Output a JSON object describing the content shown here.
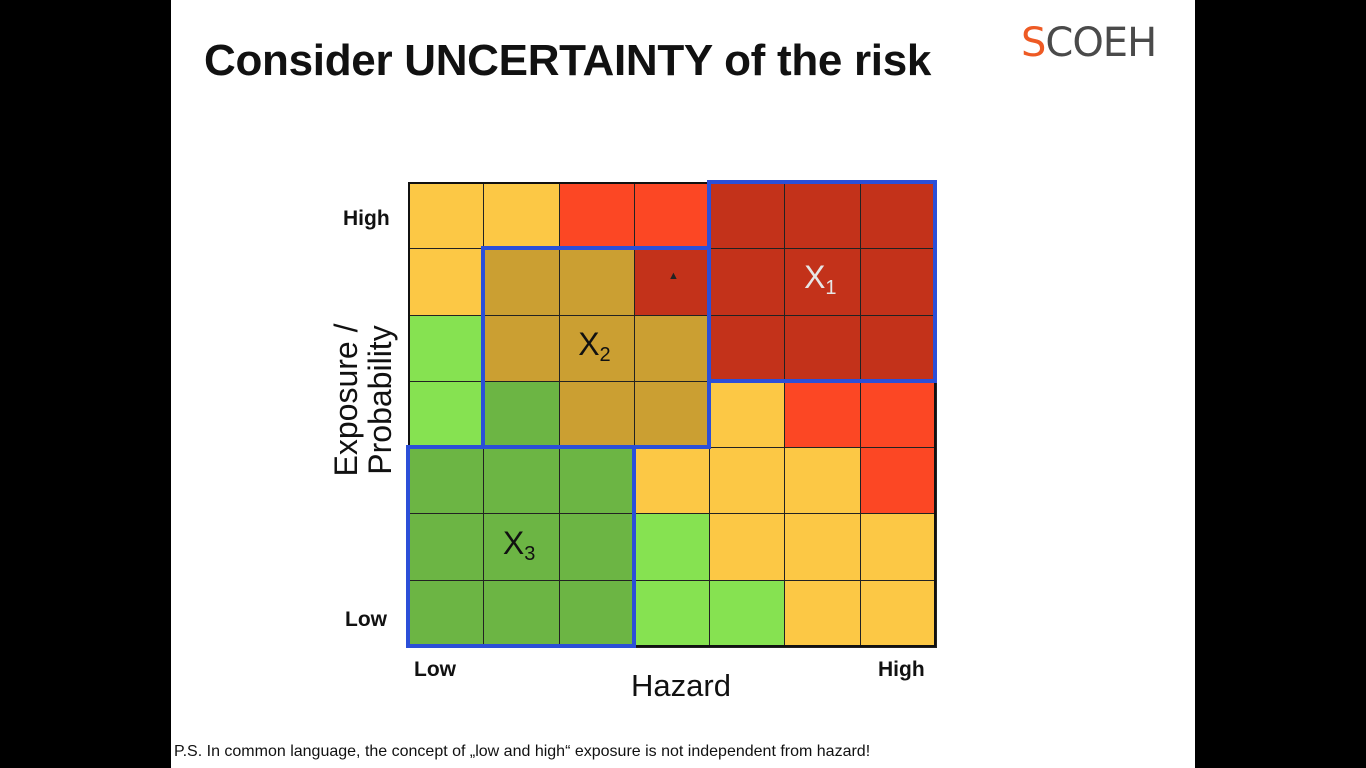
{
  "slide": {
    "title": "Consider UNCERTAINTY of the risk",
    "logo": {
      "initial": "S",
      "rest": "COEH"
    },
    "footnote": "P.S. In common language, the concept of „low and high“ exposure is not independent from hazard!"
  },
  "matrix": {
    "x_axis_label": "Hazard",
    "y_axis_label": [
      "Exposure /",
      "Probability"
    ],
    "x_low": "Low",
    "x_high": "High",
    "y_low": "Low",
    "y_high": "High",
    "columns": 7,
    "rows": 7,
    "colors": {
      "Y": "#fcc845",
      "R": "#fc4724",
      "DR": "#c3321a",
      "G": "#86e251",
      "DG": "#6cb544",
      "O": "#cb9f32",
      "M": "#e6b83c"
    },
    "cells": [
      [
        "Y",
        "Y",
        "R",
        "R",
        "DR",
        "DR",
        "DR"
      ],
      [
        "Y",
        "O",
        "O",
        "DR",
        "DR",
        "DR",
        "DR"
      ],
      [
        "G",
        "O",
        "O",
        "O",
        "DR",
        "DR",
        "DR"
      ],
      [
        "G",
        "DG",
        "O",
        "O",
        "Y",
        "R",
        "R"
      ],
      [
        "DG",
        "DG",
        "DG",
        "Y",
        "Y",
        "Y",
        "R"
      ],
      [
        "DG",
        "DG",
        "DG",
        "G",
        "Y",
        "Y",
        "Y"
      ],
      [
        "DG",
        "DG",
        "DG",
        "G",
        "G",
        "Y",
        "Y"
      ]
    ],
    "uncertainty_boxes": [
      {
        "label": "X",
        "sub": "1",
        "text_color": "#e6e6e6",
        "col": 4,
        "row": 0,
        "cols": 3,
        "rows": 3
      },
      {
        "label": "X",
        "sub": "2",
        "text_color": "#111111",
        "col": 1,
        "row": 1,
        "cols": 3,
        "rows": 3
      },
      {
        "label": "X",
        "sub": "3",
        "text_color": "#111111",
        "col": 0,
        "row": 4,
        "cols": 3,
        "rows": 3
      }
    ]
  }
}
